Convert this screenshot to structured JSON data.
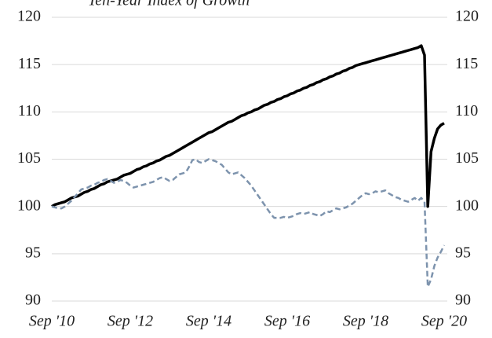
{
  "chart_data": {
    "type": "line",
    "title": "Ten-Year Index of Growth",
    "categories": [
      "Sep '10",
      null,
      null,
      null,
      null,
      null,
      null,
      null,
      null,
      null,
      null,
      null,
      null,
      null,
      null,
      null,
      null,
      null,
      null,
      null,
      null,
      null,
      null,
      null,
      "Sep '12",
      null,
      null,
      null,
      null,
      null,
      null,
      null,
      null,
      null,
      null,
      null,
      null,
      null,
      null,
      null,
      null,
      null,
      null,
      null,
      null,
      null,
      null,
      null,
      "Sep '14",
      null,
      null,
      null,
      null,
      null,
      null,
      null,
      null,
      null,
      null,
      null,
      null,
      null,
      null,
      null,
      null,
      null,
      null,
      null,
      null,
      null,
      null,
      null,
      "Sep '16",
      null,
      null,
      null,
      null,
      null,
      null,
      null,
      null,
      null,
      null,
      null,
      null,
      null,
      null,
      null,
      null,
      null,
      null,
      null,
      null,
      null,
      null,
      null,
      "Sep '18",
      null,
      null,
      null,
      null,
      null,
      null,
      null,
      null,
      null,
      null,
      null,
      null,
      null,
      null,
      null,
      null,
      null,
      null,
      null,
      null,
      null,
      null,
      null,
      "Sep '20"
    ],
    "series": [
      {
        "color": "#000000",
        "style": "solid",
        "values": [
          100.0,
          100.2,
          100.3,
          100.4,
          100.5,
          100.7,
          100.9,
          101.0,
          101.1,
          101.3,
          101.5,
          101.6,
          101.8,
          101.9,
          102.1,
          102.3,
          102.4,
          102.6,
          102.7,
          102.8,
          102.9,
          103.1,
          103.3,
          103.4,
          103.5,
          103.7,
          103.9,
          104.0,
          104.2,
          104.3,
          104.5,
          104.6,
          104.8,
          104.9,
          105.1,
          105.3,
          105.4,
          105.6,
          105.8,
          106.0,
          106.2,
          106.4,
          106.6,
          106.8,
          107.0,
          107.2,
          107.4,
          107.6,
          107.8,
          107.9,
          108.1,
          108.3,
          108.5,
          108.7,
          108.9,
          109.0,
          109.2,
          109.4,
          109.6,
          109.7,
          109.9,
          110.0,
          110.2,
          110.3,
          110.5,
          110.7,
          110.8,
          111.0,
          111.1,
          111.3,
          111.4,
          111.6,
          111.7,
          111.9,
          112.0,
          112.2,
          112.3,
          112.5,
          112.6,
          112.8,
          112.9,
          113.1,
          113.2,
          113.4,
          113.5,
          113.7,
          113.8,
          114.0,
          114.1,
          114.3,
          114.4,
          114.6,
          114.7,
          114.9,
          115.0,
          115.1,
          115.2,
          115.3,
          115.4,
          115.5,
          115.6,
          115.7,
          115.8,
          115.9,
          116.0,
          116.1,
          116.2,
          116.3,
          116.4,
          116.5,
          116.6,
          116.7,
          116.8,
          117.0,
          116.0,
          100.0,
          105.8,
          107.2,
          108.2,
          108.6,
          108.8
        ]
      },
      {
        "color": "#7d93ad",
        "style": "dashed",
        "values": [
          100.0,
          99.9,
          99.8,
          99.8,
          100.0,
          100.3,
          100.6,
          101.0,
          101.4,
          101.8,
          101.9,
          102.0,
          102.2,
          102.3,
          102.5,
          102.6,
          102.8,
          102.9,
          102.7,
          102.5,
          102.6,
          102.8,
          102.7,
          102.5,
          102.2,
          102.0,
          102.1,
          102.2,
          102.3,
          102.4,
          102.5,
          102.6,
          102.8,
          103.0,
          103.1,
          102.9,
          102.7,
          102.8,
          103.1,
          103.4,
          103.5,
          103.6,
          104.2,
          104.9,
          105.0,
          104.7,
          104.6,
          104.8,
          105.0,
          104.9,
          104.8,
          104.6,
          104.4,
          104.0,
          103.6,
          103.4,
          103.5,
          103.6,
          103.3,
          103.0,
          102.6,
          102.2,
          101.7,
          101.2,
          100.7,
          100.2,
          99.7,
          99.2,
          98.8,
          98.8,
          98.8,
          98.9,
          98.8,
          98.9,
          99.0,
          99.2,
          99.3,
          99.2,
          99.3,
          99.4,
          99.2,
          99.1,
          99.0,
          99.2,
          99.5,
          99.4,
          99.6,
          99.8,
          99.7,
          99.8,
          99.9,
          100.1,
          100.3,
          100.6,
          100.9,
          101.2,
          101.4,
          101.3,
          101.4,
          101.6,
          101.5,
          101.6,
          101.7,
          101.4,
          101.2,
          101.0,
          100.9,
          100.7,
          100.6,
          100.5,
          100.7,
          100.9,
          100.6,
          100.9,
          100.5,
          91.5,
          92.3,
          93.7,
          94.6,
          95.2,
          95.9
        ]
      }
    ],
    "ylim": [
      90,
      120
    ],
    "yticks": [
      90,
      95,
      100,
      105,
      110,
      115,
      120
    ],
    "y2lim": [
      90,
      120
    ],
    "y2ticks": [
      90,
      95,
      100,
      105,
      110,
      115,
      120
    ],
    "grid": true
  }
}
